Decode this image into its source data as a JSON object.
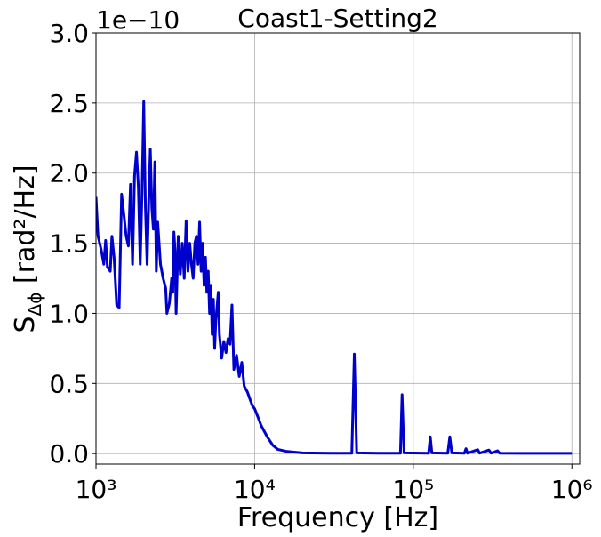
{
  "chart_data": {
    "type": "line",
    "title": "Coast1-Setting2",
    "offset_text": "1e−10",
    "xlabel": "Frequency [Hz]",
    "ylabel_parts": [
      "S",
      "Δϕ",
      " [rad²/Hz]"
    ],
    "xscale": "log",
    "grid": true,
    "color": "#0000cd",
    "xlim": [
      1000,
      1120000
    ],
    "ylim": [
      -0.075,
      3.0
    ],
    "xticks": [
      {
        "value": 1000,
        "label": "10³"
      },
      {
        "value": 10000,
        "label": "10⁴"
      },
      {
        "value": 100000,
        "label": "10⁵"
      },
      {
        "value": 1000000,
        "label": "10⁶"
      }
    ],
    "yticks": [
      {
        "value": 0,
        "label": "0.0"
      },
      0.5,
      {
        "value": 1,
        "label": "1.0"
      },
      1.5,
      {
        "value": 2,
        "label": "2.0"
      },
      2.5,
      {
        "value": 3,
        "label": "3.0"
      }
    ],
    "x": [
      1000,
      1030,
      1080,
      1120,
      1150,
      1180,
      1230,
      1260,
      1300,
      1350,
      1400,
      1450,
      1500,
      1550,
      1600,
      1650,
      1700,
      1750,
      1800,
      1850,
      1900,
      1950,
      2000,
      2050,
      2100,
      2150,
      2200,
      2250,
      2300,
      2350,
      2400,
      2450,
      2550,
      2650,
      2750,
      2800,
      2900,
      3000,
      3050,
      3100,
      3150,
      3200,
      3300,
      3400,
      3500,
      3600,
      3700,
      3800,
      3900,
      4000,
      4100,
      4200,
      4300,
      4400,
      4500,
      4600,
      4700,
      4800,
      4900,
      5000,
      5100,
      5200,
      5300,
      5400,
      5500,
      5600,
      5700,
      5900,
      6000,
      6200,
      6400,
      6600,
      6800,
      7000,
      7200,
      7400,
      7700,
      8000,
      8300,
      8600,
      9000,
      9400,
      9700,
      10000,
      10500,
      11000,
      12000,
      13000,
      14000,
      16000,
      20000,
      30000,
      41000,
      42500,
      44000,
      60000,
      83000,
      85000,
      87500,
      125000,
      128000,
      131000,
      165000,
      170000,
      175000,
      210000,
      215000,
      220000,
      255000,
      262000,
      300000,
      310000,
      340000,
      350000,
      500000,
      1000000
    ],
    "values": [
      1.83,
      1.55,
      1.45,
      1.35,
      1.52,
      1.33,
      1.3,
      1.55,
      1.4,
      1.06,
      1.04,
      1.85,
      1.7,
      1.55,
      1.48,
      1.92,
      1.35,
      1.98,
      2.15,
      1.9,
      1.35,
      1.85,
      2.51,
      1.75,
      1.35,
      1.8,
      2.17,
      1.75,
      1.6,
      2.08,
      1.3,
      1.65,
      1.35,
      1.25,
      1.18,
      1.0,
      1.07,
      1.25,
      1.15,
      1.58,
      1.45,
      1.0,
      1.55,
      1.28,
      1.5,
      1.25,
      1.66,
      1.3,
      1.5,
      1.35,
      1.25,
      1.5,
      1.55,
      1.35,
      1.65,
      1.3,
      1.5,
      1.2,
      1.4,
      1.15,
      1.3,
      1.0,
      1.2,
      0.85,
      1.1,
      0.75,
      0.95,
      1.15,
      0.85,
      0.68,
      0.8,
      0.72,
      0.82,
      0.78,
      1.06,
      0.6,
      0.7,
      0.55,
      0.65,
      0.48,
      0.44,
      0.38,
      0.34,
      0.32,
      0.26,
      0.2,
      0.12,
      0.06,
      0.03,
      0.015,
      0.005,
      0.003,
      0.003,
      0.71,
      0.005,
      0.003,
      0.003,
      0.42,
      0.005,
      0.003,
      0.12,
      0.005,
      0.003,
      0.12,
      0.005,
      0.003,
      0.035,
      0.003,
      0.028,
      0.003,
      0.025,
      0.003,
      0.02,
      0.003,
      0.002,
      0.002
    ]
  }
}
